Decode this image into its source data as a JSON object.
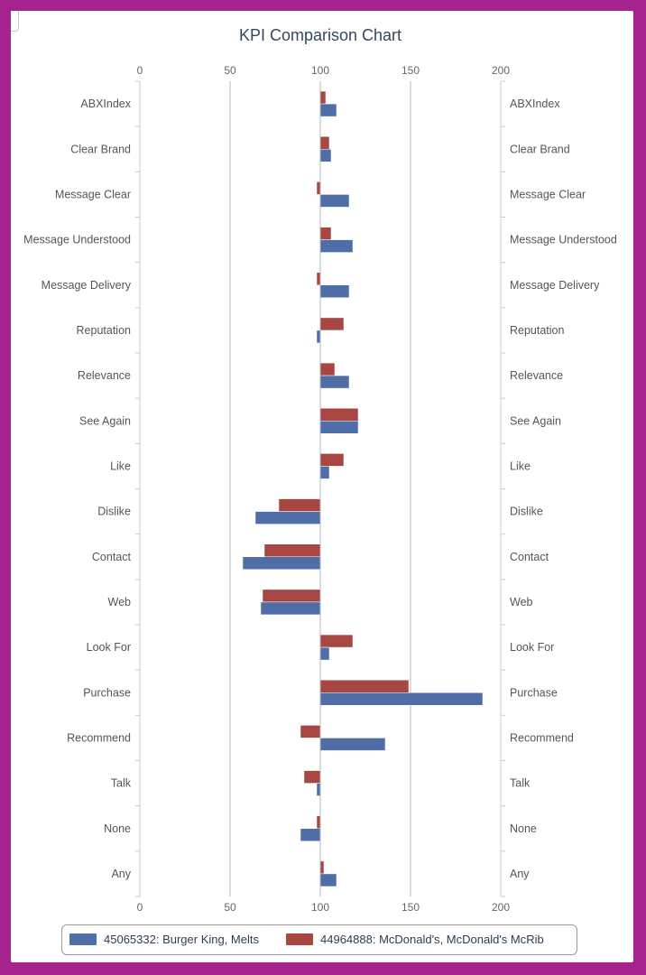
{
  "chart_data": {
    "type": "bar",
    "orientation": "horizontal",
    "title": "KPI Comparison Chart",
    "xlim": [
      0,
      200
    ],
    "xticks": [
      0,
      50,
      100,
      150,
      200
    ],
    "baseline": 100,
    "grid": true,
    "legend_position": "bottom",
    "categories": [
      "ABXIndex",
      "Clear Brand",
      "Message Clear",
      "Message Understood",
      "Message Delivery",
      "Reputation",
      "Relevance",
      "See Again",
      "Like",
      "Dislike",
      "Contact",
      "Web",
      "Look For",
      "Purchase",
      "Recommend",
      "Talk",
      "None",
      "Any"
    ],
    "series": [
      {
        "name": "45065332: Burger King, Melts",
        "color": "#4f6ea8",
        "values": [
          109,
          106,
          116,
          118,
          116,
          98,
          116,
          121,
          105,
          64,
          57,
          67,
          105,
          190,
          136,
          98,
          89,
          109
        ]
      },
      {
        "name": "44964888: McDonald's, McDonald's McRib",
        "color": "#a84642",
        "values": [
          103,
          105,
          98,
          106,
          98,
          113,
          108,
          121,
          113,
          77,
          69,
          68,
          118,
          149,
          89,
          91,
          98,
          102
        ]
      }
    ]
  }
}
